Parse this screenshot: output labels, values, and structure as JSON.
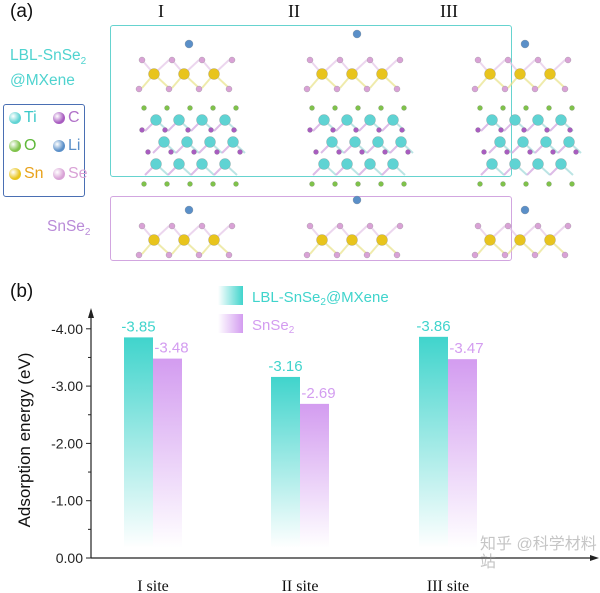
{
  "panel_a": {
    "label": "(a)",
    "columns": [
      "I",
      "II",
      "III"
    ],
    "row_labels": {
      "composite_line1": "LBL-SnSe",
      "composite_sub1": "2",
      "composite_line2": "@MXene",
      "snse2": "SnSe",
      "snse2_sub": "2"
    },
    "legend": [
      {
        "symbol": "Ti",
        "color": "#5fd3d3",
        "text_color": "#3cc8c8"
      },
      {
        "symbol": "C",
        "color": "#a85cc0",
        "text_color": "#b070c8"
      },
      {
        "symbol": "O",
        "color": "#7fc24a",
        "text_color": "#5fb83a"
      },
      {
        "symbol": "Li",
        "color": "#5a8fc8",
        "text_color": "#5a8fc8"
      },
      {
        "symbol": "Sn",
        "color": "#e8c41c",
        "text_color": "#e8a21c"
      },
      {
        "symbol": "Se",
        "color": "#d9a2d6",
        "text_color": "#d9a2d6"
      }
    ],
    "colors": {
      "composite_box": "#66d3cf",
      "snse2_box": "#d2a6e0",
      "legend_box": "#4a6fb3"
    }
  },
  "panel_b": {
    "label": "(b)"
  },
  "watermark": "知乎 @科学材料站",
  "chart_data": {
    "type": "bar",
    "categories": [
      "I site",
      "II site",
      "III site"
    ],
    "series": [
      {
        "name": "LBL-SnSe2@MXene",
        "name_main": "LBL-SnSe",
        "name_sub": "2",
        "name_tail": "@MXene",
        "values": [
          -3.85,
          -3.16,
          -3.86
        ],
        "labels": [
          "-3.85",
          "-3.16",
          "-3.86"
        ],
        "color": "#40d4cc"
      },
      {
        "name": "SnSe2",
        "name_main": "SnSe",
        "name_sub": "2",
        "name_tail": "",
        "values": [
          -3.48,
          -2.69,
          -3.47
        ],
        "labels": [
          "-3.48",
          "-2.69",
          "-3.47"
        ],
        "color": "#d39cf0"
      }
    ],
    "ylabel": "Adsorption energy (eV)",
    "xlabel": "",
    "ylim": [
      0,
      -4.0
    ],
    "yticks": [
      "0.00",
      "-1.00",
      "-2.00",
      "-3.00",
      "-4.00"
    ],
    "ytick_values": [
      0,
      -1,
      -2,
      -3,
      -4
    ],
    "y_inverted": true,
    "grid": false,
    "legend_position": "top-center"
  }
}
